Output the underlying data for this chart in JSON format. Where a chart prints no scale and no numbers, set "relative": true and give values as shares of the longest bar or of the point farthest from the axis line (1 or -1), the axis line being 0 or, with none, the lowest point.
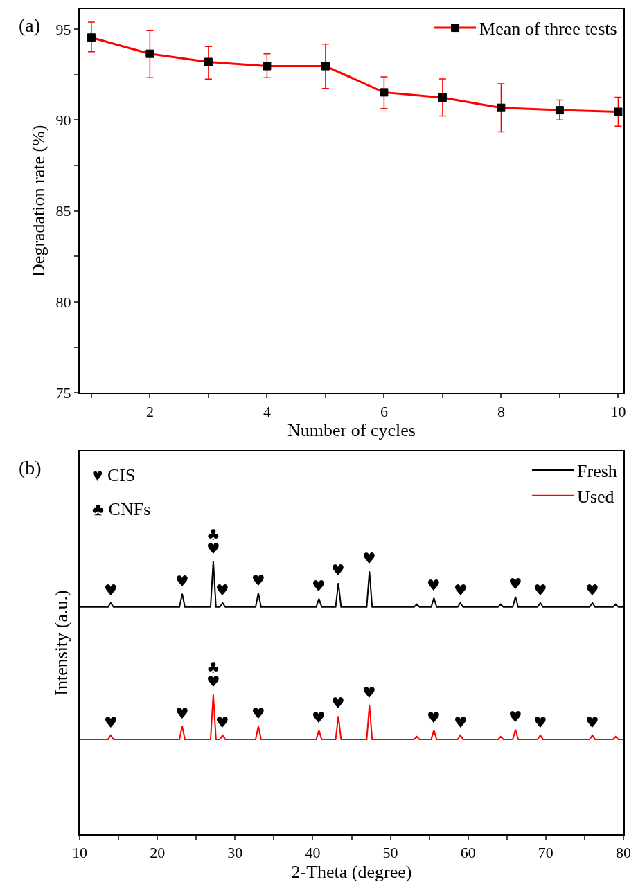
{
  "chart_data": [
    {
      "type": "line",
      "xlabel": "Number of cycles",
      "ylabel": "Degradation rate (%)",
      "annotations": [
        "(a)"
      ],
      "x": [
        1,
        2,
        3,
        4,
        5,
        6,
        7,
        8,
        9,
        10
      ],
      "series": [
        {
          "name": "Mean of three tests",
          "color": "#ff0000",
          "values": [
            94.53,
            93.64,
            93.19,
            92.96,
            92.96,
            91.52,
            91.23,
            90.67,
            90.54,
            90.45
          ],
          "errors": [
            [
              93.75,
              95.38
            ],
            [
              92.32,
              94.91
            ],
            [
              92.25,
              94.04
            ],
            [
              92.32,
              93.64
            ],
            [
              91.73,
              94.17
            ],
            [
              90.63,
              92.37
            ],
            [
              90.22,
              92.26
            ],
            [
              89.35,
              91.99
            ],
            [
              90.0,
              91.1
            ],
            [
              89.66,
              91.25
            ]
          ]
        }
      ],
      "xlim": [
        0.8,
        10.09
      ],
      "ylim": [
        75,
        96.1
      ],
      "xticks": [
        {
          "value": 1,
          "label": null
        },
        2,
        {
          "value": 3,
          "label": null
        },
        4,
        {
          "value": 5,
          "label": null
        },
        6,
        {
          "value": 7,
          "label": null
        },
        8,
        {
          "value": 9,
          "label": null
        },
        10
      ],
      "yticks": [
        75,
        {
          "value": 77.5,
          "label": null
        },
        80,
        {
          "value": 82.5,
          "label": null
        },
        85,
        {
          "value": 87.5,
          "label": null
        },
        90,
        {
          "value": 92.5,
          "label": null
        },
        95
      ],
      "marker": "square",
      "line_style": "solid",
      "legend": "top right"
    },
    {
      "type": "line",
      "relative": true,
      "xlabel": "2-Theta (degree)",
      "ylabel": "Intensity (a.u.)",
      "annotations": [
        "(b)",
        "♥ CIS",
        "♣ CNFs",
        {
          "text": "♥",
          "x": 14,
          "y": 0.848
        },
        {
          "text": "♥",
          "x": 23.2,
          "y": 0.881
        },
        {
          "text": "♥",
          "x": 27.2,
          "y": 1.0
        },
        {
          "text": "♣",
          "x": 27.2,
          "y": 1.0
        },
        {
          "text": "♥",
          "x": 28.4,
          "y": 0.848
        },
        {
          "text": "♥",
          "x": 33.0,
          "y": 0.884
        },
        {
          "text": "♥",
          "x": 40.8,
          "y": 0.863
        },
        {
          "text": "♥",
          "x": 43.3,
          "y": 0.921
        },
        {
          "text": "♥",
          "x": 47.3,
          "y": 0.963
        },
        {
          "text": "♥",
          "x": 55.6,
          "y": 0.866
        },
        {
          "text": "♥",
          "x": 59.0,
          "y": 0.848
        },
        {
          "text": "♥",
          "x": 66.1,
          "y": 0.87
        },
        {
          "text": "♥",
          "x": 69.3,
          "y": 0.848
        },
        {
          "text": "♥",
          "x": 76.0,
          "y": 0.848
        },
        {
          "text": "♥",
          "x": 14,
          "y": 0.363
        },
        {
          "text": "♥",
          "x": 23.2,
          "y": 0.396
        },
        {
          "text": "♥",
          "x": 27.2,
          "y": 0.512
        },
        {
          "text": "♣",
          "x": 27.2,
          "y": 0.512
        },
        {
          "text": "♥",
          "x": 28.4,
          "y": 0.363
        },
        {
          "text": "♥",
          "x": 33.0,
          "y": 0.396
        },
        {
          "text": "♥",
          "x": 40.8,
          "y": 0.381
        },
        {
          "text": "♥",
          "x": 43.3,
          "y": 0.433
        },
        {
          "text": "♥",
          "x": 47.3,
          "y": 0.473
        },
        {
          "text": "♥",
          "x": 55.6,
          "y": 0.381
        },
        {
          "text": "♥",
          "x": 59.0,
          "y": 0.363
        },
        {
          "text": "♥",
          "x": 66.1,
          "y": 0.384
        },
        {
          "text": "♥",
          "x": 69.3,
          "y": 0.363
        },
        {
          "text": "♥",
          "x": 76.0,
          "y": 0.363
        }
      ],
      "x": [
        10,
        13.65,
        14,
        14.35,
        22.85,
        23.2,
        23.55,
        26.85,
        27.2,
        27.55,
        28.05,
        28.4,
        28.75,
        32.65,
        33.0,
        33.35,
        40.45,
        40.8,
        41.15,
        42.95,
        43.3,
        43.65,
        46.95,
        47.3,
        47.65,
        53.05,
        53.4,
        53.75,
        55.25,
        55.6,
        55.95,
        58.65,
        59.0,
        59.35,
        63.85,
        64.2,
        64.55,
        65.75,
        66.1,
        66.45,
        68.95,
        69.3,
        69.65,
        75.65,
        76.0,
        76.35,
        78.65,
        79.0,
        79.35,
        80
      ],
      "series": [
        {
          "name": "Fresh",
          "color": "#000000",
          "values": [
            0.833,
            0.833,
            0.848,
            0.833,
            0.833,
            0.881,
            0.833,
            0.833,
            1.0,
            0.833,
            0.833,
            0.848,
            0.833,
            0.833,
            0.884,
            0.833,
            0.833,
            0.863,
            0.833,
            0.833,
            0.921,
            0.833,
            0.833,
            0.963,
            0.833,
            0.833,
            0.843,
            0.833,
            0.833,
            0.866,
            0.833,
            0.833,
            0.848,
            0.833,
            0.833,
            0.843,
            0.833,
            0.833,
            0.87,
            0.833,
            0.833,
            0.848,
            0.833,
            0.833,
            0.848,
            0.833,
            0.833,
            0.843,
            0.833,
            0.833
          ]
        },
        {
          "name": "Used",
          "color": "#ff0000",
          "values": [
            0.348,
            0.348,
            0.363,
            0.348,
            0.348,
            0.396,
            0.348,
            0.348,
            0.512,
            0.348,
            0.348,
            0.363,
            0.348,
            0.348,
            0.396,
            0.348,
            0.348,
            0.381,
            0.348,
            0.348,
            0.433,
            0.348,
            0.348,
            0.473,
            0.348,
            0.348,
            0.358,
            0.348,
            0.348,
            0.381,
            0.348,
            0.348,
            0.363,
            0.348,
            0.348,
            0.358,
            0.348,
            0.348,
            0.384,
            0.348,
            0.348,
            0.363,
            0.348,
            0.348,
            0.363,
            0.348,
            0.348,
            0.358,
            0.348,
            0.348
          ]
        }
      ],
      "xlim": [
        10,
        80
      ],
      "xticks": [
        10,
        {
          "value": 15,
          "label": null
        },
        20,
        {
          "value": 25,
          "label": null
        },
        30,
        {
          "value": 35,
          "label": null
        },
        40,
        {
          "value": 45,
          "label": null
        },
        50,
        {
          "value": 55,
          "label": null
        },
        60,
        {
          "value": 65,
          "label": null
        },
        70,
        {
          "value": 75,
          "label": null
        },
        80
      ],
      "marker": "none",
      "line_style": "solid",
      "legend": "top right"
    }
  ]
}
